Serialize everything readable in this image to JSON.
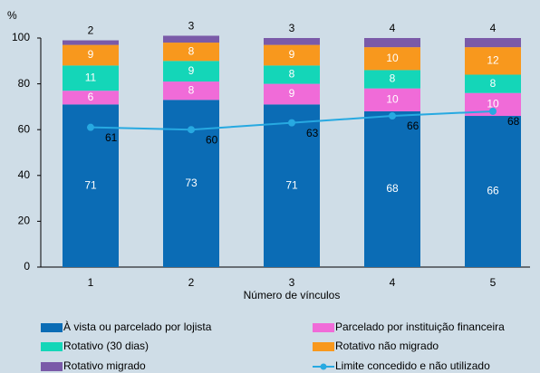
{
  "chart_data": {
    "type": "stacked_bar_line",
    "y_unit": "%",
    "x_label": "Número de vínculos",
    "categories": [
      "1",
      "2",
      "3",
      "4",
      "5"
    ],
    "ylim": [
      0,
      100
    ],
    "yticks": [
      0,
      20,
      40,
      60,
      80,
      100
    ],
    "series": [
      {
        "name": "À vista ou parcelado por lojista",
        "color": "#0b6cb5",
        "values": [
          71,
          73,
          71,
          68,
          66
        ]
      },
      {
        "name": "Parcelado por instituição financeira",
        "color": "#f06bd8",
        "values": [
          6,
          8,
          9,
          10,
          10
        ]
      },
      {
        "name": "Rotativo (30 dias)",
        "color": "#14d6b8",
        "values": [
          11,
          9,
          8,
          8,
          8
        ]
      },
      {
        "name": "Rotativo não migrado",
        "color": "#f8981d",
        "values": [
          9,
          8,
          9,
          10,
          12
        ]
      },
      {
        "name": "Rotativo migrado",
        "color": "#7a5aa8",
        "values": [
          2,
          3,
          3,
          4,
          4
        ]
      }
    ],
    "line_series": {
      "name": "Limite concedido e não utilizado",
      "color": "#27a9e1",
      "values": [
        61,
        60,
        63,
        66,
        68
      ]
    }
  }
}
